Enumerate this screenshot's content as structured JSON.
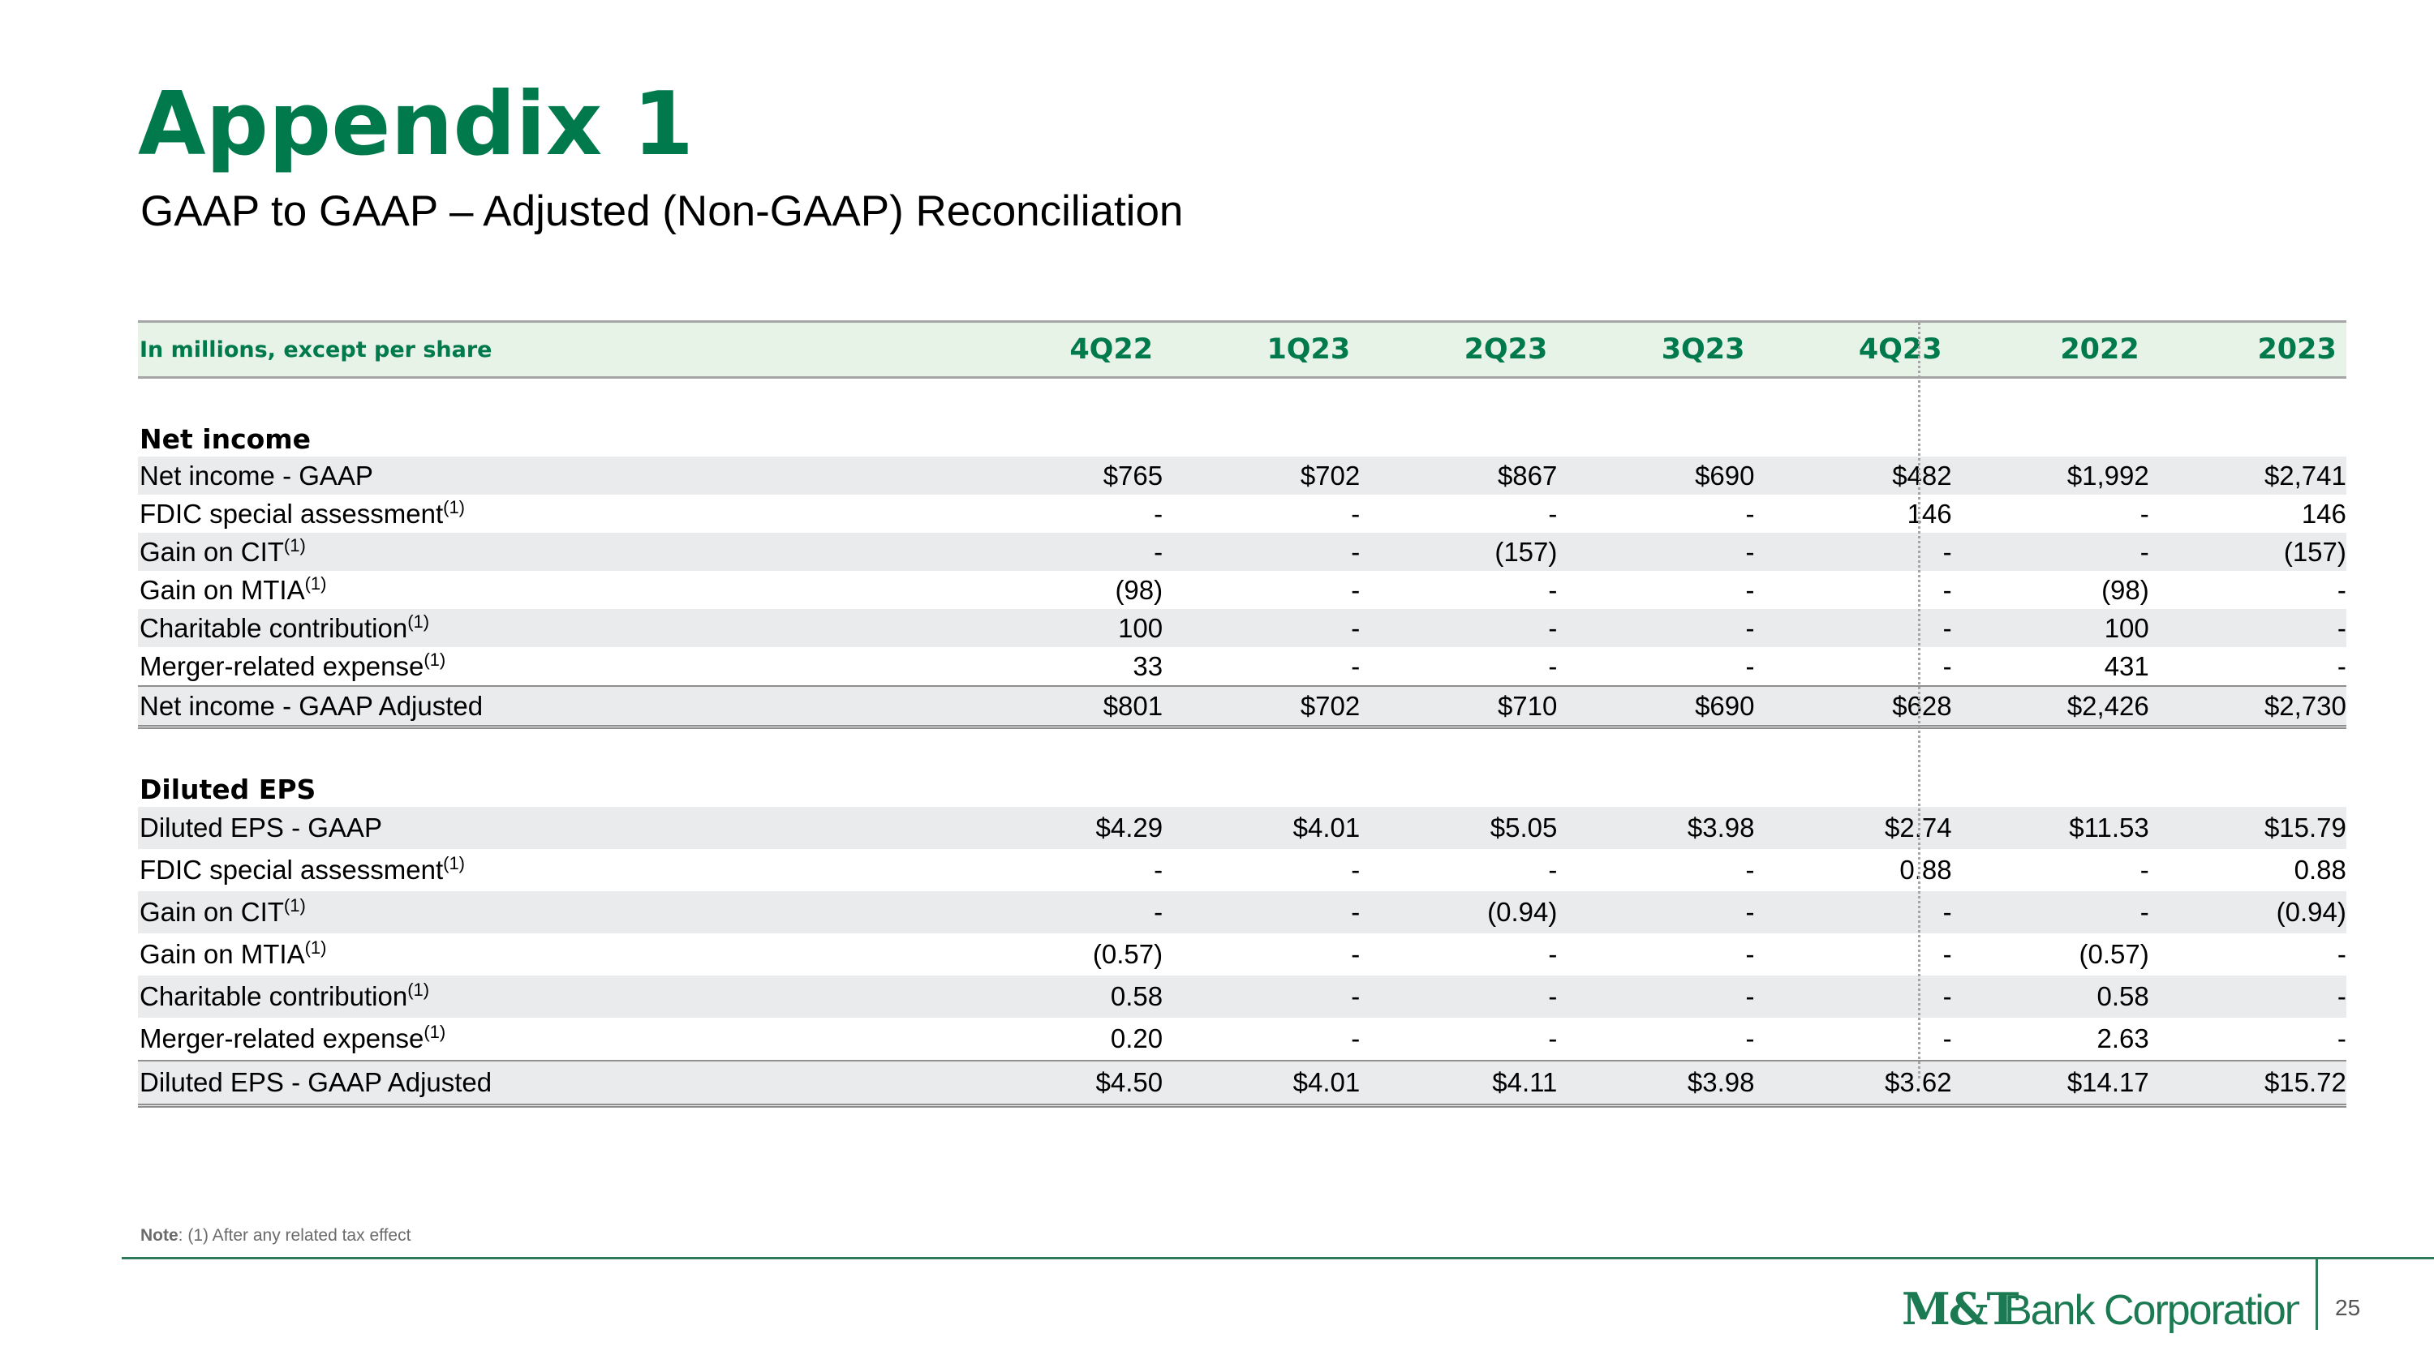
{
  "header": {
    "title": "Appendix 1",
    "subtitle": "GAAP to GAAP – Adjusted (Non-GAAP) Reconciliation"
  },
  "table": {
    "label_header": "In millions, except per share",
    "columns": [
      "4Q22",
      "1Q23",
      "2Q23",
      "3Q23",
      "4Q23",
      "2022",
      "2023"
    ],
    "net_income": {
      "section_label": "Net income",
      "rows": [
        {
          "label": "Net income - GAAP",
          "note": "",
          "values": [
            "$765",
            "$702",
            "$867",
            "$690",
            "$482",
            "$1,992",
            "$2,741"
          ]
        },
        {
          "label": "FDIC special assessment",
          "note": "(1)",
          "values": [
            "-",
            "-",
            "-",
            "-",
            "146",
            "-",
            "146"
          ]
        },
        {
          "label": "Gain on CIT",
          "note": "(1)",
          "values": [
            "-",
            "-",
            "(157)",
            "-",
            "-",
            "-",
            "(157)"
          ]
        },
        {
          "label": "Gain on MTIA",
          "note": "(1)",
          "values": [
            "(98)",
            "-",
            "-",
            "-",
            "-",
            "(98)",
            "-"
          ]
        },
        {
          "label": "Charitable contribution",
          "note": "(1)",
          "values": [
            "100",
            "-",
            "-",
            "-",
            "-",
            "100",
            "-"
          ]
        },
        {
          "label": "Merger-related expense",
          "note": "(1)",
          "values": [
            "33",
            "-",
            "-",
            "-",
            "-",
            "431",
            "-"
          ]
        },
        {
          "label": "Net income - GAAP Adjusted",
          "note": "",
          "values": [
            "$801",
            "$702",
            "$710",
            "$690",
            "$628",
            "$2,426",
            "$2,730"
          ]
        }
      ]
    },
    "diluted_eps": {
      "section_label": "Diluted EPS",
      "rows": [
        {
          "label": "Diluted EPS - GAAP",
          "note": "",
          "values": [
            "$4.29",
            "$4.01",
            "$5.05",
            "$3.98",
            "$2.74",
            "$11.53",
            "$15.79"
          ]
        },
        {
          "label": "FDIC special assessment",
          "note": "(1)",
          "values": [
            "-",
            "-",
            "-",
            "-",
            "0.88",
            "-",
            "0.88"
          ]
        },
        {
          "label": "Gain on CIT",
          "note": "(1)",
          "values": [
            "-",
            "-",
            "(0.94)",
            "-",
            "-",
            "-",
            "(0.94)"
          ]
        },
        {
          "label": "Gain on MTIA",
          "note": "(1)",
          "values": [
            "(0.57)",
            "-",
            "-",
            "-",
            "-",
            "(0.57)",
            "-"
          ]
        },
        {
          "label": "Charitable contribution",
          "note": "(1)",
          "values": [
            "0.58",
            "-",
            "-",
            "-",
            "-",
            "0.58",
            "-"
          ]
        },
        {
          "label": "Merger-related expense",
          "note": "(1)",
          "values": [
            "0.20",
            "-",
            "-",
            "-",
            "-",
            "2.63",
            "-"
          ]
        },
        {
          "label": "Diluted EPS - GAAP Adjusted",
          "note": "",
          "values": [
            "$4.50",
            "$4.01",
            "$4.11",
            "$3.98",
            "$3.62",
            "$14.17",
            "$15.72"
          ]
        }
      ]
    }
  },
  "footer": {
    "note_label": "Note",
    "note_text": ": (1) After any related tax effect",
    "logo_text": "M&T Bank Corporation",
    "page_number": "25"
  },
  "colors": {
    "brand_green": "#007a4d",
    "header_fill": "#e6f3e6",
    "row_shade": "#eaebec"
  }
}
